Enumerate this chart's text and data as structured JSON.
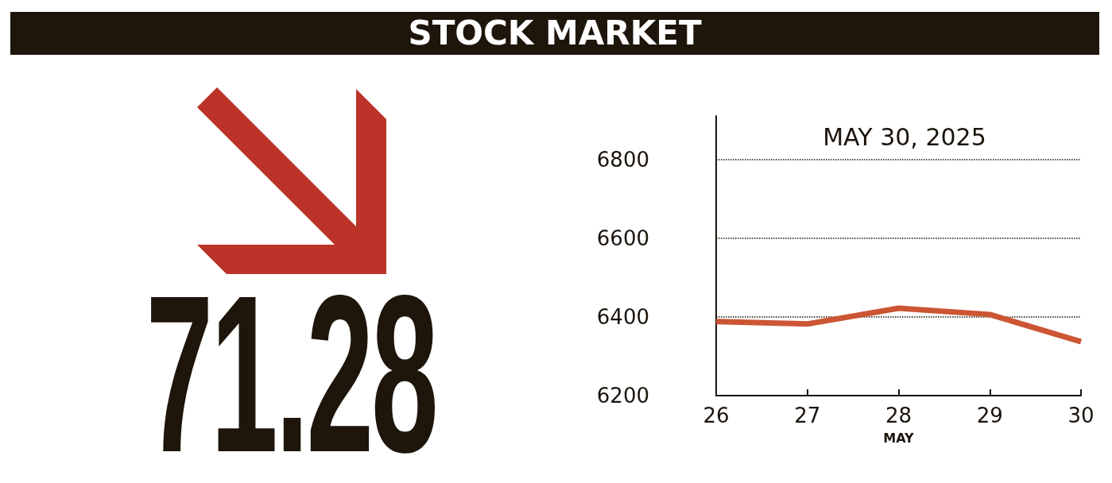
{
  "chart_data": {
    "type": "line",
    "title": "STOCK MARKET",
    "subtitle": "MAY 30, 2025",
    "xlabel": "MAY",
    "annotations": [
      "71.28"
    ],
    "categories": [
      "26",
      "27",
      "28",
      "29",
      "30"
    ],
    "series": [
      {
        "color": "#cc5533",
        "values": [
          6388,
          6382,
          6422,
          6406,
          6337
        ]
      }
    ],
    "ylim": [
      6200,
      6910
    ],
    "yticks": [
      6200,
      6400,
      6600,
      6800
    ],
    "grid": "y",
    "marker": "none",
    "line_style": "solid"
  }
}
